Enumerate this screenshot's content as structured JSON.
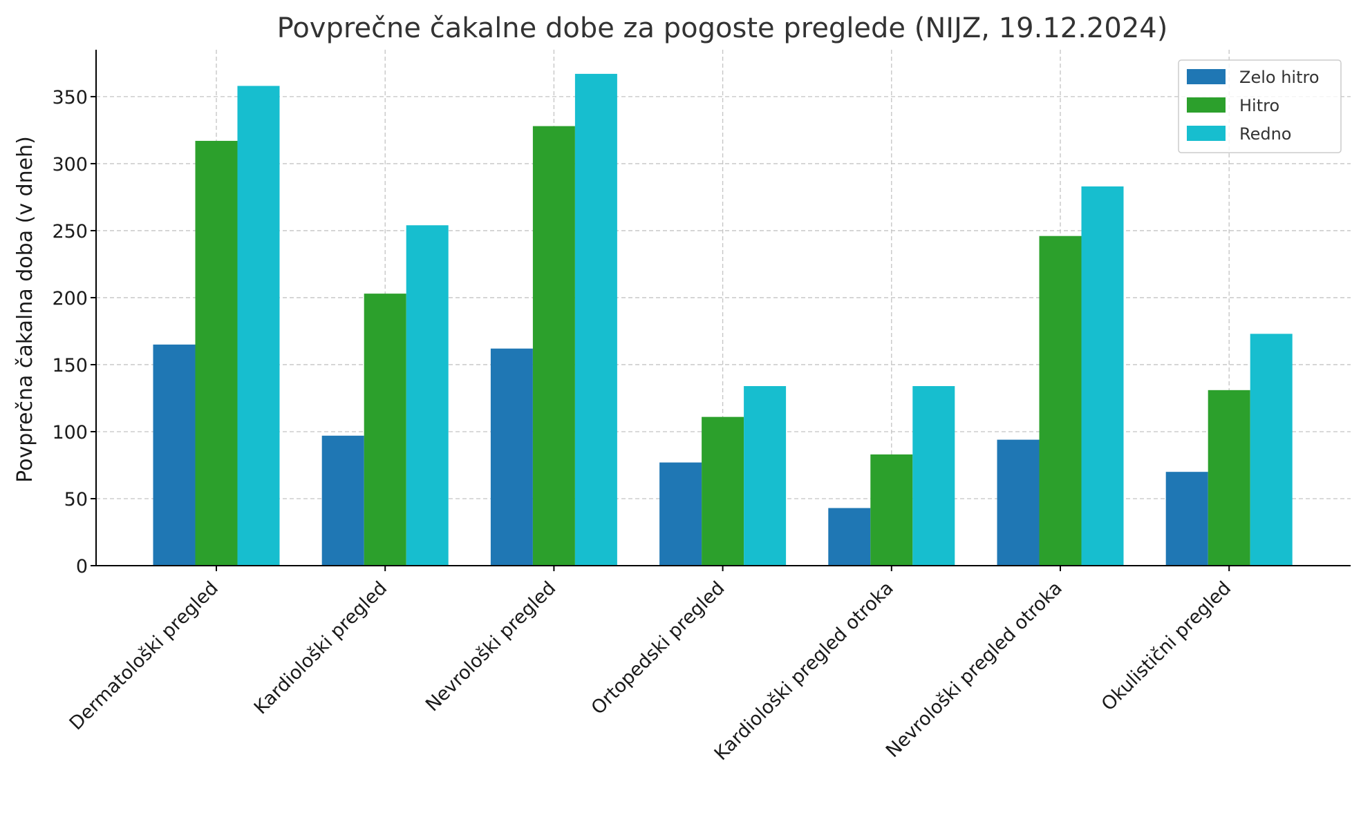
{
  "chart_data": {
    "type": "bar",
    "title": "Povprečne čakalne dobe za pogoste preglede (NIJZ, 19.12.2024)",
    "xlabel": "",
    "ylabel": "Povprečna čakalna doba (v dneh)",
    "categories": [
      "Dermatološki pregled",
      "Kardiološki pregled",
      "Nevrološki pregled",
      "Ortopedski pregled",
      "Kardiološki pregled otroka",
      "Nevrološki pregled otroka",
      "Okulistični pregled"
    ],
    "series": [
      {
        "name": "Zelo hitro",
        "color": "#1f77b4",
        "values": [
          165,
          97,
          162,
          77,
          43,
          94,
          70
        ]
      },
      {
        "name": "Hitro",
        "color": "#2ca02c",
        "values": [
          317,
          203,
          328,
          111,
          83,
          246,
          131
        ]
      },
      {
        "name": "Redno",
        "color": "#17becf",
        "values": [
          358,
          254,
          367,
          134,
          134,
          283,
          173
        ]
      }
    ],
    "yticks": [
      "0",
      "50",
      "100",
      "150",
      "200",
      "250",
      "300",
      "350"
    ],
    "ylim": [
      0,
      385
    ],
    "grid": true,
    "legend_position": "top-right"
  }
}
